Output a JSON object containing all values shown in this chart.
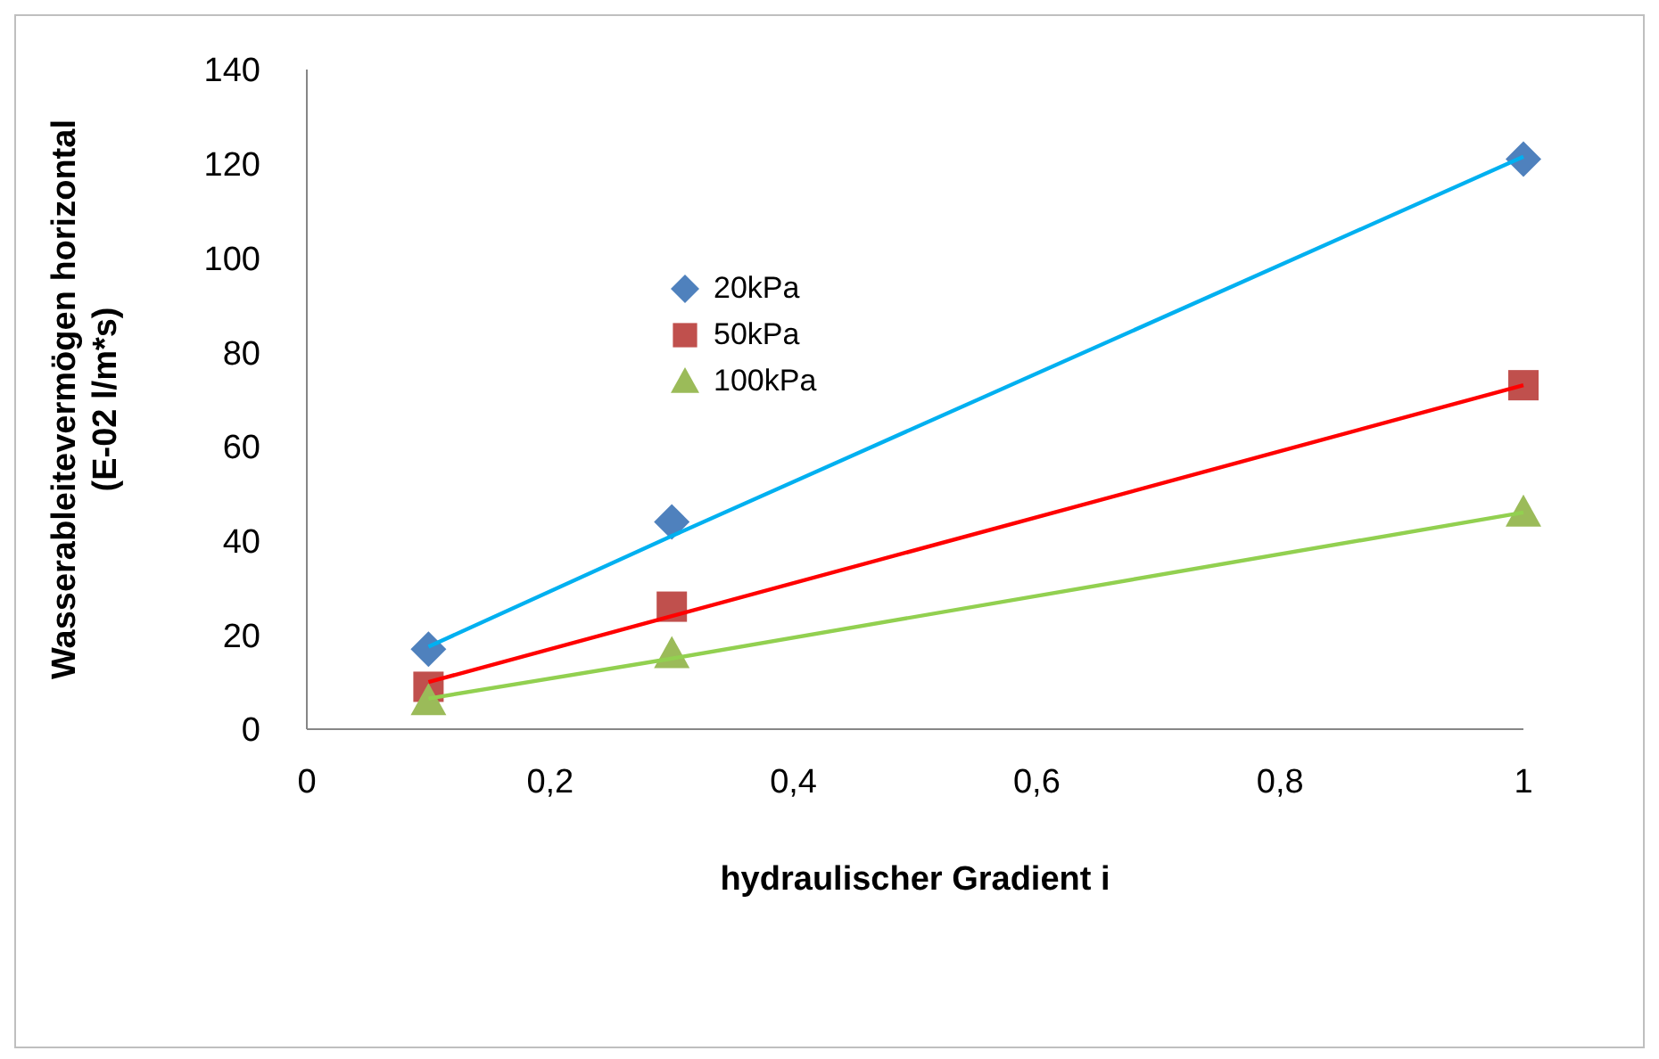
{
  "chart_data": {
    "type": "scatter",
    "xlabel": "hydraulischer Gradient i",
    "ylabel": "Wasserableitevermögen horizontal\n(E-02 l/m*s)",
    "x": [
      0.1,
      0.3,
      1
    ],
    "series": [
      {
        "name": "20kPa",
        "color": "#4f81bd",
        "marker": "diamond",
        "values": [
          17,
          44,
          121
        ]
      },
      {
        "name": "50kPa",
        "color": "#c0504d",
        "marker": "square",
        "values": [
          9,
          26,
          73
        ]
      },
      {
        "name": "100kPa",
        "color": "#9bbb59",
        "marker": "triangle",
        "values": [
          6,
          16,
          46
        ]
      },
      {
        "type": "line",
        "color": "#00b0f0",
        "marker": "none",
        "values": [
          17.5,
          41,
          121.5
        ]
      },
      {
        "type": "line",
        "color": "#ff0000",
        "marker": "none",
        "values": [
          10,
          24,
          73
        ]
      },
      {
        "type": "line",
        "color": "#92d050",
        "marker": "none",
        "values": [
          6.5,
          15,
          46
        ]
      }
    ],
    "xlim": [
      0,
      1
    ],
    "xticks": [
      0,
      {
        "value": 0.2,
        "label": "0,2"
      },
      {
        "value": 0.4,
        "label": "0,4"
      },
      {
        "value": 0.6,
        "label": "0,6"
      },
      {
        "value": 0.8,
        "label": "0,8"
      },
      1
    ],
    "ylim": [
      0,
      140
    ],
    "yticks": [
      0,
      20,
      40,
      60,
      80,
      100,
      120,
      140
    ],
    "grid": false,
    "legend": "top left"
  }
}
